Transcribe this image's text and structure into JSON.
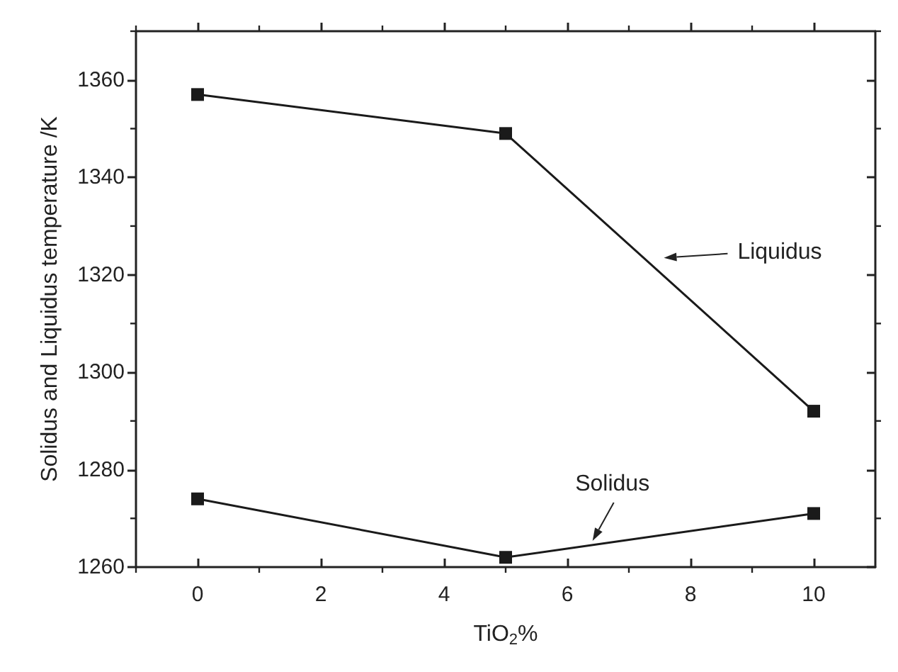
{
  "chart_data": {
    "type": "line",
    "xlabel": "TiO$_{2}$%",
    "ylabel": "Solidus and Liquidus temperature /K",
    "x": [
      0,
      5,
      10
    ],
    "series": [
      {
        "color": "#1a1a1a",
        "values": [
          1357,
          1349,
          1292
        ]
      },
      {
        "color": "#1a1a1a",
        "values": [
          1274,
          1262,
          1271
        ]
      }
    ],
    "annotations": [
      "Liquidus",
      "Solidus"
    ],
    "xlim": [
      -1,
      11
    ],
    "xticks": [
      0,
      2,
      4,
      6,
      8,
      10
    ],
    "ylim": [
      1260,
      1370
    ],
    "yticks": [
      1260,
      1280,
      1300,
      1320,
      1340,
      1360
    ],
    "grid": false,
    "marker": "square",
    "line_style": "solid"
  }
}
